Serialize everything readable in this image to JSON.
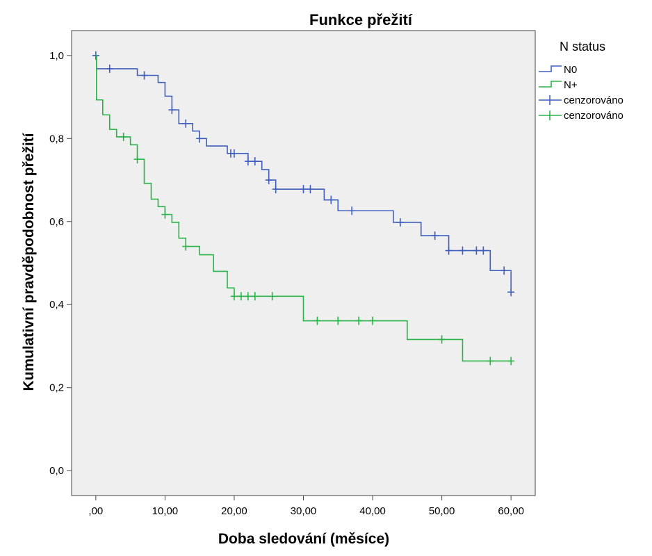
{
  "chart_data": {
    "type": "line",
    "title": "Funkce přežití",
    "xlabel": "Doba sledování (měsíce)",
    "ylabel": "Kumulativní pravděpodobnost přežití",
    "xlim": [
      -3.5,
      63.5
    ],
    "ylim": [
      -0.06,
      1.06
    ],
    "grid": false,
    "x_ticks": [
      0,
      10,
      20,
      30,
      40,
      50,
      60
    ],
    "x_tick_labels": [
      ",00",
      "10,00",
      "20,00",
      "30,00",
      "40,00",
      "50,00",
      "60,00"
    ],
    "y_ticks": [
      0,
      0.2,
      0.4,
      0.6,
      0.8,
      1.0
    ],
    "y_tick_labels": [
      "0,0",
      "0,2",
      "0,4",
      "0,6",
      "0,8",
      "1,0"
    ],
    "legend": {
      "title": "N status",
      "placement": "right",
      "entries": [
        {
          "label": "N0",
          "kind": "step",
          "color": "#3f5fbf"
        },
        {
          "label": "N+",
          "kind": "step",
          "color": "#28b446"
        },
        {
          "label": "cenzorováno",
          "kind": "censor",
          "color": "#3f5fbf"
        },
        {
          "label": "cenzorováno",
          "kind": "censor",
          "color": "#28b446"
        }
      ]
    },
    "series": [
      {
        "name": "N0",
        "color": "#3f5fbf",
        "steps": [
          [
            0,
            1.0
          ],
          [
            0.1,
            0.968
          ],
          [
            6,
            0.952
          ],
          [
            9,
            0.935
          ],
          [
            10,
            0.902
          ],
          [
            11,
            0.869
          ],
          [
            12,
            0.836
          ],
          [
            14,
            0.818
          ],
          [
            15,
            0.8
          ],
          [
            16,
            0.782
          ],
          [
            19,
            0.764
          ],
          [
            22,
            0.745
          ],
          [
            24,
            0.725
          ],
          [
            25,
            0.7
          ],
          [
            26,
            0.678
          ],
          [
            33,
            0.652
          ],
          [
            35,
            0.626
          ],
          [
            43,
            0.598
          ],
          [
            47,
            0.566
          ],
          [
            51,
            0.53
          ],
          [
            57,
            0.482
          ],
          [
            60,
            0.43
          ]
        ],
        "censored": [
          0,
          2,
          7,
          11,
          13,
          15,
          19.5,
          20,
          22,
          23,
          25,
          26,
          30,
          31,
          34,
          37,
          44,
          49,
          51,
          53,
          55,
          56,
          59,
          60
        ]
      },
      {
        "name": "N+",
        "color": "#28b446",
        "steps": [
          [
            0,
            1.0
          ],
          [
            0.1,
            0.893
          ],
          [
            1,
            0.857
          ],
          [
            2,
            0.822
          ],
          [
            3,
            0.804
          ],
          [
            5,
            0.785
          ],
          [
            6,
            0.75
          ],
          [
            7,
            0.692
          ],
          [
            8,
            0.654
          ],
          [
            9,
            0.636
          ],
          [
            10,
            0.617
          ],
          [
            11,
            0.598
          ],
          [
            12,
            0.56
          ],
          [
            13,
            0.54
          ],
          [
            15,
            0.52
          ],
          [
            17,
            0.48
          ],
          [
            19,
            0.44
          ],
          [
            20,
            0.42
          ],
          [
            30,
            0.361
          ],
          [
            45,
            0.316
          ],
          [
            53,
            0.264
          ]
        ],
        "censored": [
          4,
          6,
          10,
          13,
          20,
          21,
          22,
          23,
          25.5,
          32,
          35,
          38,
          40,
          50,
          57,
          60
        ]
      }
    ]
  }
}
